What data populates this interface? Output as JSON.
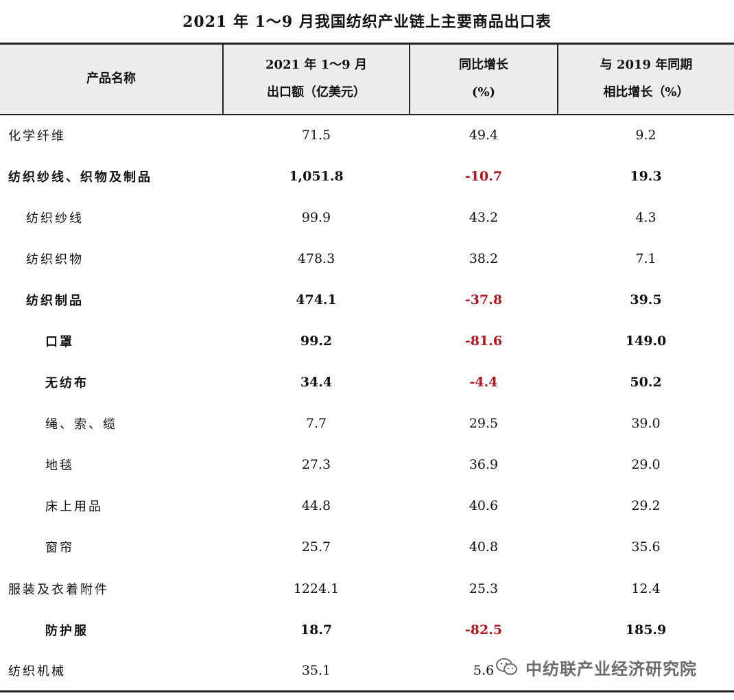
{
  "title": "2021 年 1～9 月我国纺织产业链上主要商品出口表",
  "header": {
    "col1": "产品名称",
    "col2_line1": "2021 年 1～9 月",
    "col2_line2": "出口额（亿美元）",
    "col3_line1": "同比增长",
    "col3_line2": "(%)",
    "col4_line1": "与 2019 年同期",
    "col4_line2": "相比增长（%）"
  },
  "rows": [
    {
      "name": "化学纤维",
      "export": "71.5",
      "yoy": "49.4",
      "vs2019": "9.2",
      "bold": false,
      "indent": 0
    },
    {
      "name": "纺织纱线、织物及制品",
      "export": "1,051.8",
      "yoy": "-10.7",
      "vs2019": "19.3",
      "bold": true,
      "indent": 0
    },
    {
      "name": "纺织纱线",
      "export": "99.9",
      "yoy": "43.2",
      "vs2019": "4.3",
      "bold": false,
      "indent": 1
    },
    {
      "name": "纺织织物",
      "export": "478.3",
      "yoy": "38.2",
      "vs2019": "7.1",
      "bold": false,
      "indent": 1
    },
    {
      "name": "纺织制品",
      "export": "474.1",
      "yoy": "-37.8",
      "vs2019": "39.5",
      "bold": true,
      "indent": 1
    },
    {
      "name": "口罩",
      "export": "99.2",
      "yoy": "-81.6",
      "vs2019": "149.0",
      "bold": true,
      "indent": 2
    },
    {
      "name": "无纺布",
      "export": "34.4",
      "yoy": "-4.4",
      "vs2019": "50.2",
      "bold": true,
      "indent": 2
    },
    {
      "name": "绳、索、缆",
      "export": "7.7",
      "yoy": "29.5",
      "vs2019": "39.0",
      "bold": false,
      "indent": 2
    },
    {
      "name": "地毯",
      "export": "27.3",
      "yoy": "36.9",
      "vs2019": "29.0",
      "bold": false,
      "indent": 2
    },
    {
      "name": "床上用品",
      "export": "44.8",
      "yoy": "40.6",
      "vs2019": "29.2",
      "bold": false,
      "indent": 2
    },
    {
      "name": "窗帘",
      "export": "25.7",
      "yoy": "40.8",
      "vs2019": "35.6",
      "bold": false,
      "indent": 2
    },
    {
      "name": "服装及衣着附件",
      "export": "1224.1",
      "yoy": "25.3",
      "vs2019": "12.4",
      "bold": false,
      "indent": 0
    },
    {
      "name": "防护服",
      "export": "18.7",
      "yoy": "-82.5",
      "vs2019": "185.9",
      "bold": true,
      "indent": 2
    },
    {
      "name": "纺织机械",
      "export": "35.1",
      "yoy": "5.6",
      "vs2019": "",
      "bold": false,
      "indent": 0
    }
  ],
  "colors": {
    "negative": "#b0141c",
    "header_bg": "#ececec"
  },
  "watermark": {
    "icon": "wechat-icon",
    "text": "中纺联产业经济研究院"
  }
}
